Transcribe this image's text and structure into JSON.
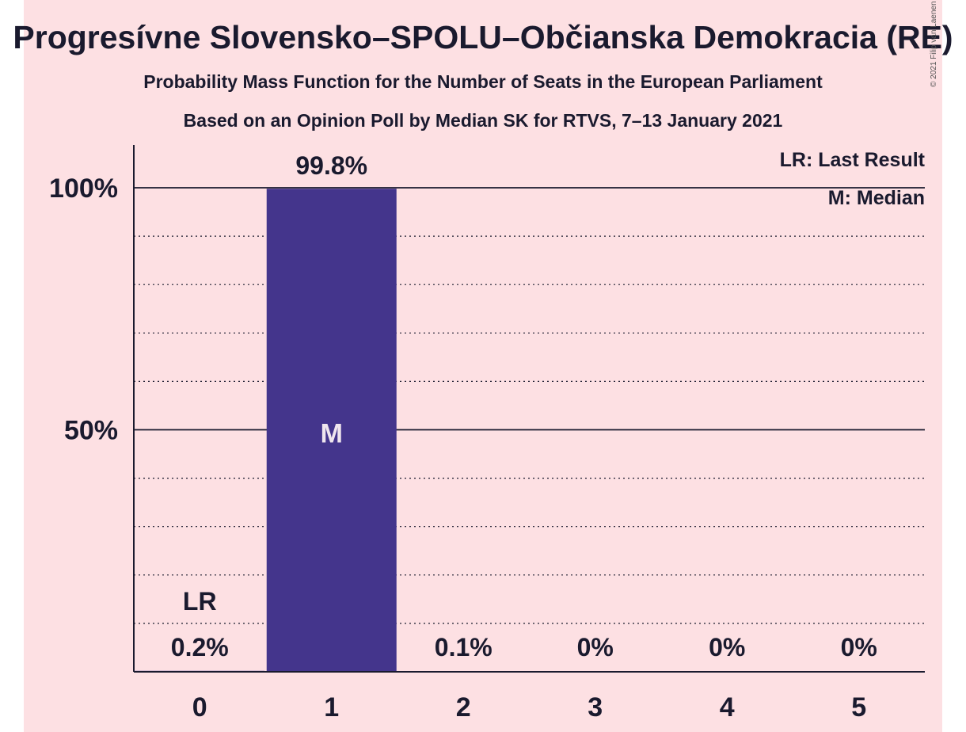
{
  "colors": {
    "background": "#fde0e3",
    "bar": "#44358c",
    "text": "#1a1a2e",
    "median_label": "#f0e6ee"
  },
  "header": {
    "title": "Progresívne Slovensko–SPOLU–Občianska Demokracia (RE)",
    "subtitle1": "Probability Mass Function for the Number of Seats in the European Parliament",
    "subtitle2": "Based on an Opinion Poll by Median SK for RTVS, 7–13 January 2021",
    "copyright": "© 2021 Filip van Laenen"
  },
  "chart_data": {
    "type": "bar",
    "title": "Progresívne Slovensko–SPOLU–Občianska Demokracia (RE)",
    "categories": [
      "0",
      "1",
      "2",
      "3",
      "4",
      "5"
    ],
    "values": [
      0.2,
      99.8,
      0.1,
      0,
      0,
      0
    ],
    "value_labels": [
      "0.2%",
      "99.8%",
      "0.1%",
      "0%",
      "0%",
      "0%"
    ],
    "ylim": [
      0,
      110
    ],
    "yticks": [
      50,
      100
    ],
    "ytick_labels": [
      "50%",
      "100%"
    ],
    "minor_grid_step": 10,
    "last_result_index": 0,
    "last_result_marker": "LR",
    "median_index": 1,
    "median_marker": "M",
    "legend": [
      "LR: Last Result",
      "M: Median"
    ],
    "legend_position": "top-right"
  }
}
